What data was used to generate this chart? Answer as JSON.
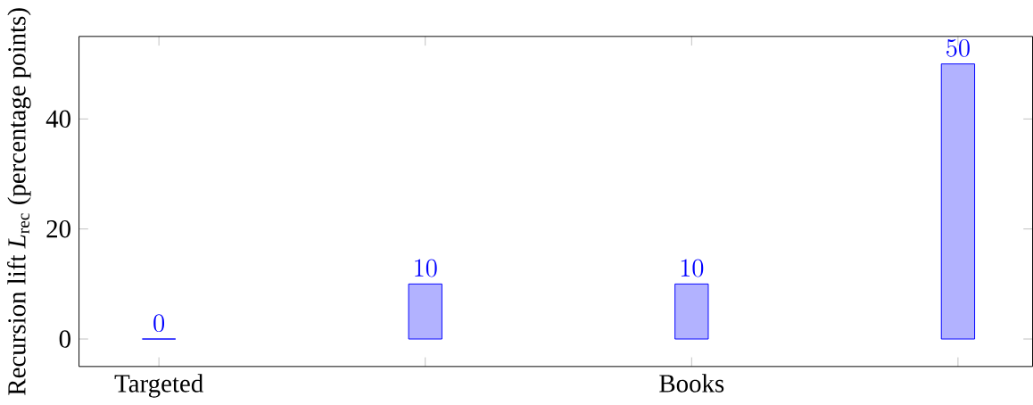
{
  "chart_data": {
    "type": "bar",
    "ylabel": "Recursion lift *L*$_{rec}$ (percentage points)",
    "categories": [
      "Targeted",
      null,
      "Books",
      null
    ],
    "values": [
      0,
      10,
      10,
      50
    ],
    "color": "#0000ff",
    "ylim": [
      -5,
      55
    ],
    "yticks": [
      0,
      20,
      40
    ],
    "data_labels": true
  }
}
